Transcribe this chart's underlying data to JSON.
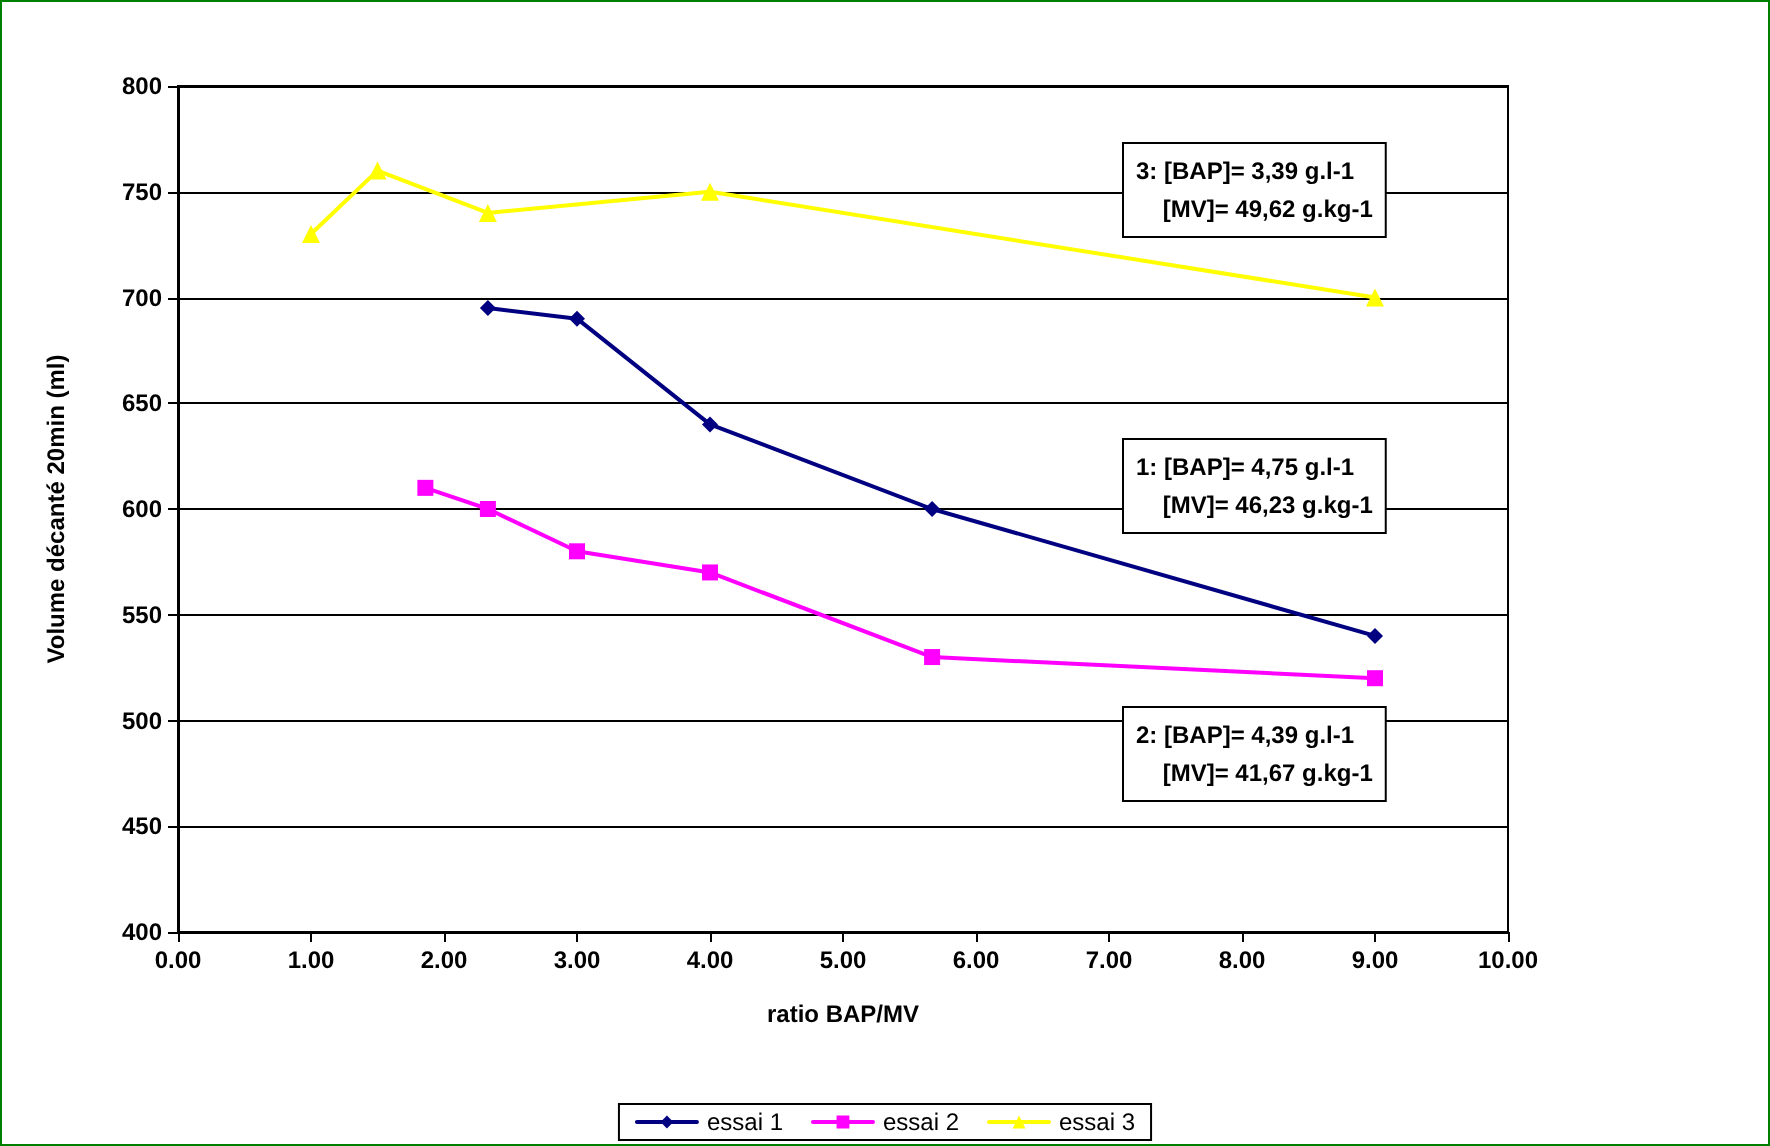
{
  "chart_data": {
    "type": "line",
    "xlabel": "ratio BAP/MV",
    "ylabel": "Volume décanté 20min (ml)",
    "xlim": [
      0,
      10
    ],
    "ylim": [
      400,
      800
    ],
    "xticks": [
      {
        "value": 0,
        "label": "0.00"
      },
      {
        "value": 1,
        "label": "1.00"
      },
      {
        "value": 2,
        "label": "2.00"
      },
      {
        "value": 3,
        "label": "3.00"
      },
      {
        "value": 4,
        "label": "4.00"
      },
      {
        "value": 5,
        "label": "5.00"
      },
      {
        "value": 6,
        "label": "6.00"
      },
      {
        "value": 7,
        "label": "7.00"
      },
      {
        "value": 8,
        "label": "8.00"
      },
      {
        "value": 9,
        "label": "9.00"
      },
      {
        "value": 10,
        "label": "10.00"
      }
    ],
    "yticks": [
      400,
      450,
      500,
      550,
      600,
      650,
      700,
      750,
      800
    ],
    "grid": "y",
    "legend": "bottom",
    "line_style": "solid",
    "series": [
      {
        "name": "essai 1",
        "color": "#000080",
        "marker": "diamond",
        "x": [
          2.33,
          3.0,
          4.0,
          5.67,
          9.0
        ],
        "values": [
          695,
          690,
          640,
          600,
          540
        ]
      },
      {
        "name": "essai 2",
        "color": "#ff00ff",
        "marker": "square",
        "x": [
          1.86,
          2.33,
          3.0,
          4.0,
          5.67,
          9.0
        ],
        "values": [
          610,
          600,
          580,
          570,
          530,
          520
        ]
      },
      {
        "name": "essai 3",
        "color": "#ffff00",
        "marker": "triangle",
        "x": [
          1.0,
          1.5,
          2.33,
          4.0,
          9.0
        ],
        "values": [
          730,
          760,
          740,
          750,
          700
        ]
      }
    ],
    "annotations": [
      "3: [BAP]= 3,39 g.l-1\n    [MV]= 49,62 g.kg-1",
      "1: [BAP]= 4,75 g.l-1\n    [MV]= 46,23 g.kg-1",
      "2: [BAP]= 4,39 g.l-1\n    [MV]= 41,67 g.kg-1"
    ]
  }
}
